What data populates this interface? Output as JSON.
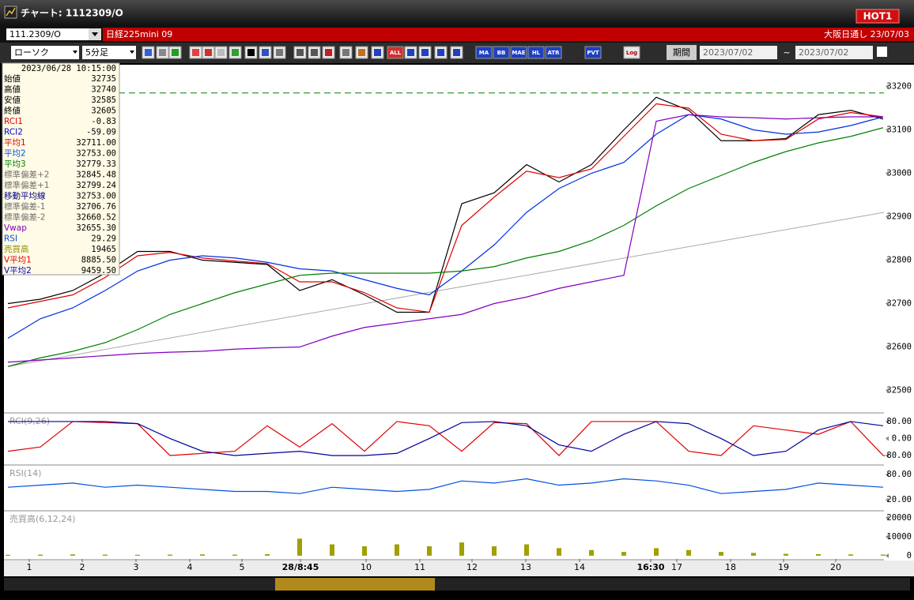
{
  "window": {
    "title": "チャート: 1112309/O",
    "badge": "HOT1"
  },
  "header": {
    "symbol": "111.2309/O",
    "name": "日経225mini 09",
    "market": "大阪日通し 23/07/03"
  },
  "toolbar": {
    "chart_style": "ローソク",
    "interval": "5分足",
    "buttons": [
      "ALL",
      "MA",
      "BB",
      "MAE",
      "HL",
      "ATR",
      "PVT",
      "Log"
    ],
    "period_button": "期間",
    "date_from": "2023/07/02",
    "separator": "~",
    "date_to": "2023/07/02"
  },
  "info_panel": {
    "timestamp": "2023/06/28 10:15:00",
    "rows": [
      {
        "label": "始値",
        "value": "32735",
        "color": "#000000"
      },
      {
        "label": "高値",
        "value": "32740",
        "color": "#000000"
      },
      {
        "label": "安値",
        "value": "32585",
        "color": "#000000"
      },
      {
        "label": "終値",
        "value": "32605",
        "color": "#000000"
      },
      {
        "label": "RCI1",
        "value": "-0.83",
        "color": "#e00000"
      },
      {
        "label": "RCI2",
        "value": "-59.09",
        "color": "#0000d0"
      },
      {
        "label": "平均1",
        "value": "32711.00",
        "color": "#e00000"
      },
      {
        "label": "平均2",
        "value": "32753.00",
        "color": "#0050e0"
      },
      {
        "label": "平均3",
        "value": "32779.33",
        "color": "#008000"
      },
      {
        "label": "標準偏差+2",
        "value": "32845.48",
        "color": "#707070"
      },
      {
        "label": "標準偏差+1",
        "value": "32799.24",
        "color": "#707070"
      },
      {
        "label": "移動平均線",
        "value": "32753.00",
        "color": "#000080"
      },
      {
        "label": "標準偏差-1",
        "value": "32706.76",
        "color": "#707070"
      },
      {
        "label": "標準偏差-2",
        "value": "32660.52",
        "color": "#707070"
      },
      {
        "label": "Vwap",
        "value": "32655.30",
        "color": "#8000c0"
      },
      {
        "label": "RSI",
        "value": "29.29",
        "color": "#0050e0"
      },
      {
        "label": "売買高",
        "value": "19465",
        "color": "#909000"
      },
      {
        "label": "V平均1",
        "value": "8885.50",
        "color": "#e00000"
      },
      {
        "label": "V平均2",
        "value": "9459.50",
        "color": "#0000d0"
      }
    ]
  },
  "x_tick_labels": [
    "1",
    "2",
    "3",
    "4",
    "5",
    "28/8:45",
    "10",
    "11",
    "12",
    "13",
    "14",
    "16:30",
    "17",
    "18",
    "19",
    "20"
  ],
  "chart_data": [
    {
      "type": "line",
      "ylim": [
        32450,
        33250
      ],
      "yticks": [
        32500,
        32600,
        32700,
        32800,
        32900,
        33000,
        33100,
        33200
      ],
      "hline": 33185,
      "hline_color": "#008000",
      "trend": [
        32555,
        32910
      ],
      "series": [
        {
          "name": "終値",
          "color": "#000000",
          "values": [
            32700,
            32710,
            32730,
            32770,
            32820,
            32820,
            32800,
            32795,
            32790,
            32730,
            32755,
            32720,
            32680,
            32680,
            32930,
            32955,
            33020,
            32980,
            33020,
            33100,
            33175,
            33145,
            33075,
            33075,
            33080,
            33135,
            33145,
            33125
          ]
        },
        {
          "name": "平均1",
          "color": "#e00000",
          "values": [
            32690,
            32705,
            32720,
            32760,
            32810,
            32818,
            32805,
            32798,
            32792,
            32750,
            32750,
            32725,
            32690,
            32680,
            32880,
            32945,
            33005,
            32990,
            33010,
            33085,
            33160,
            33150,
            33090,
            33075,
            33078,
            33125,
            33140,
            33130
          ]
        },
        {
          "name": "平均2",
          "color": "#0030e0",
          "values": [
            32620,
            32665,
            32690,
            32730,
            32775,
            32800,
            32810,
            32805,
            32795,
            32780,
            32775,
            32755,
            32735,
            32720,
            32775,
            32835,
            32910,
            32965,
            33000,
            33025,
            33090,
            33135,
            33125,
            33100,
            33090,
            33095,
            33110,
            33130
          ]
        },
        {
          "name": "平均3",
          "color": "#008000",
          "values": [
            32555,
            32575,
            32590,
            32610,
            32640,
            32675,
            32700,
            32725,
            32745,
            32765,
            32770,
            32770,
            32770,
            32770,
            32775,
            32785,
            32805,
            32820,
            32845,
            32880,
            32925,
            32965,
            32995,
            33025,
            33050,
            33070,
            33085,
            33105
          ]
        },
        {
          "name": "Vwap",
          "color": "#8000c0",
          "values": [
            32565,
            32570,
            32575,
            32580,
            32585,
            32588,
            32590,
            32595,
            32598,
            32600,
            32625,
            32645,
            32655,
            32665,
            32675,
            32700,
            32715,
            32735,
            32750,
            32765,
            33120,
            33135,
            33130,
            33128,
            33125,
            33128,
            33130,
            33130
          ]
        }
      ]
    },
    {
      "type": "line",
      "label": "RCI(9,26)",
      "ylim": [
        -121,
        117
      ],
      "yticks": [
        {
          "value": 80,
          "label": "80.00"
        },
        {
          "value": 0,
          "label": "0.00"
        },
        {
          "value": -80,
          "label": "-80.00"
        }
      ],
      "series": [
        {
          "name": "RCI1",
          "color": "#e00000",
          "values": [
            -60,
            -40,
            80,
            75,
            70,
            -80,
            -70,
            -60,
            60,
            -40,
            70,
            -60,
            80,
            60,
            -60,
            75,
            70,
            -80,
            80,
            80,
            80,
            -60,
            -80,
            60,
            40,
            20,
            80,
            -80
          ]
        },
        {
          "name": "RCI2",
          "color": "#0000a0",
          "values": [
            80,
            80,
            80,
            80,
            70,
            0,
            -60,
            -80,
            -70,
            -60,
            -80,
            -80,
            -70,
            0,
            75,
            80,
            60,
            -30,
            -60,
            20,
            80,
            70,
            0,
            -80,
            -60,
            40,
            80,
            60
          ]
        }
      ]
    },
    {
      "type": "line",
      "label": "RSI(14)",
      "ylim": [
        -4,
        101
      ],
      "yticks": [
        {
          "value": 80,
          "label": "80.00"
        },
        {
          "value": 20,
          "label": "20.00"
        }
      ],
      "series": [
        {
          "name": "RSI",
          "color": "#0050e0",
          "values": [
            50,
            55,
            60,
            50,
            55,
            50,
            45,
            40,
            40,
            35,
            50,
            45,
            40,
            45,
            65,
            60,
            70,
            55,
            60,
            70,
            65,
            55,
            35,
            40,
            45,
            60,
            55,
            50
          ]
        }
      ]
    },
    {
      "type": "bar",
      "label": "売買高(6,12,24)",
      "ylim": [
        -1700,
        23300
      ],
      "yticks": [
        20000,
        10000,
        0
      ],
      "color": "#a0a000",
      "values": [
        500,
        600,
        700,
        600,
        500,
        600,
        700,
        600,
        800,
        9000,
        6000,
        5000,
        6000,
        5000,
        7000,
        5000,
        6000,
        4000,
        3000,
        2000,
        4000,
        3000,
        2000,
        1500,
        1000,
        800,
        700,
        600
      ]
    }
  ]
}
